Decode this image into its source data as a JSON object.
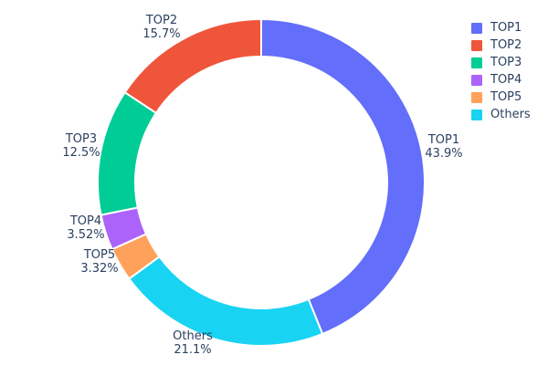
{
  "chart_data": {
    "type": "pie",
    "subtype": "donut",
    "hole": 0.77,
    "title": "",
    "background": "#ffffff",
    "text_color": "#2a3f5f",
    "separator_color": "#ffffff",
    "legend_position": "top-right",
    "labels": [
      "TOP1",
      "TOP2",
      "TOP3",
      "TOP4",
      "TOP5",
      "Others"
    ],
    "values": [
      43.9,
      15.7,
      12.5,
      3.52,
      3.32,
      21.1
    ],
    "percent_labels": [
      "43.9%",
      "15.7%",
      "12.5%",
      "3.52%",
      "3.32%",
      "21.1%"
    ],
    "colors": [
      "#636EFA",
      "#EF553B",
      "#00CC96",
      "#AB63FA",
      "#FFA15A",
      "#19D3F3"
    ],
    "legend_entries": [
      "TOP1",
      "TOP2",
      "TOP3",
      "TOP4",
      "TOP5",
      "Others"
    ]
  }
}
